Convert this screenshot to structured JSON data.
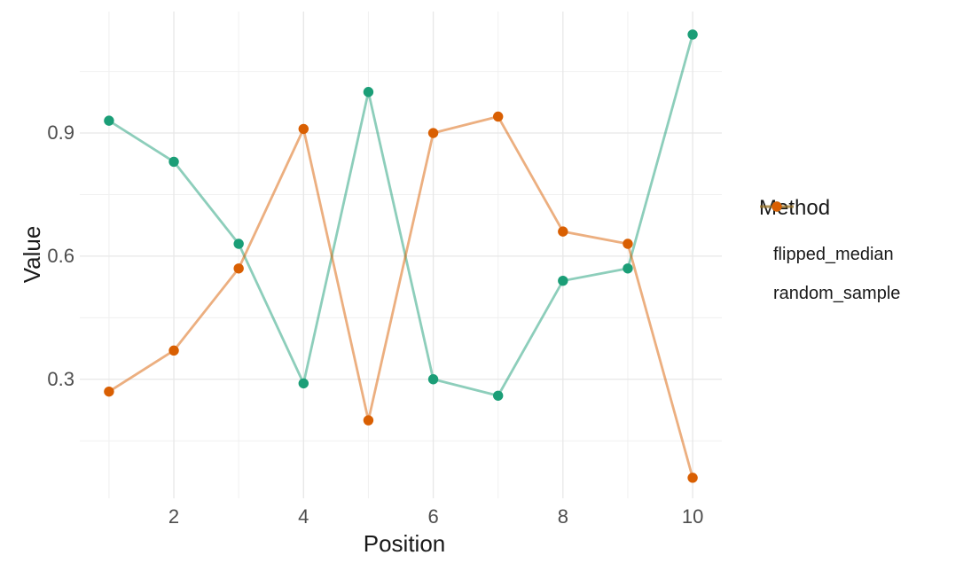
{
  "chart_data": {
    "type": "line",
    "title": "",
    "xlabel": "Position",
    "ylabel": "Value",
    "x": [
      1,
      2,
      3,
      4,
      5,
      6,
      7,
      8,
      9,
      10
    ],
    "series": [
      {
        "name": "flipped_median",
        "color": "#1b9e77",
        "line_color": "rgba(27,158,119,0.5)",
        "values": [
          0.93,
          0.83,
          0.63,
          0.29,
          1.0,
          0.3,
          0.26,
          0.54,
          0.57,
          1.14
        ]
      },
      {
        "name": "random_sample",
        "color": "#d95f02",
        "line_color": "rgba(217,95,2,0.5)",
        "values": [
          0.27,
          0.37,
          0.57,
          0.91,
          0.2,
          0.9,
          0.94,
          0.66,
          0.63,
          0.06
        ]
      }
    ],
    "x_ticks": [
      2,
      4,
      6,
      8,
      10
    ],
    "x_minor_ticks": [
      1,
      3,
      5,
      7,
      9
    ],
    "y_ticks": [
      "0.3",
      "0.6",
      "0.9"
    ],
    "y_minor_ticks": [
      0.15,
      0.45,
      0.75,
      1.05
    ],
    "xlim": [
      0.55,
      10.45
    ],
    "ylim": [
      0.01,
      1.196
    ],
    "grid": true,
    "legend": {
      "title": "Method",
      "position": "right"
    }
  },
  "style_colors": {
    "grid_major": "#e7e7e7",
    "grid_minor": "#f0f0f0",
    "tick_text": "#4d4d4d",
    "title_text": "#191919",
    "background": "#ffffff"
  }
}
